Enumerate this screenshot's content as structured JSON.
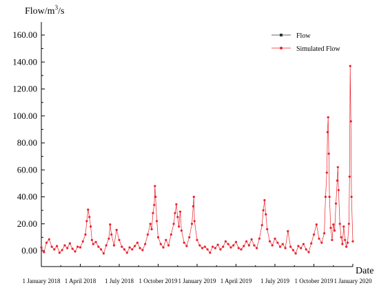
{
  "chart_data": {
    "type": "line",
    "ylabel_main": "Flow/m",
    "ylabel_sup": "3",
    "ylabel_tail": "/s",
    "xlabel": "Date",
    "ylim": [
      -5,
      170
    ],
    "yticks": [
      "0.00",
      "20.00",
      "40.00",
      "60.00",
      "80.00",
      "100.00",
      "120.00",
      "140.00",
      "160.00"
    ],
    "ytick_values": [
      0,
      20,
      40,
      60,
      80,
      100,
      120,
      140,
      160
    ],
    "xtick_labels": [
      "1 January 2018",
      "1 April 2018",
      "1 July 2018",
      "1 October 2019",
      "1 January 2019",
      "1 April 2019",
      "1 July 2019",
      "1 October 2019",
      "1 January 2020"
    ],
    "x_range": [
      0,
      24
    ],
    "grid": false,
    "legend_position": "top-right",
    "series": [
      {
        "name": "Flow",
        "color": "#333333",
        "marker": "square"
      },
      {
        "name": "Simulated Flow",
        "color": "#e8202a",
        "marker": "circle"
      }
    ],
    "points": [
      [
        0.0,
        2.5
      ],
      [
        0.2,
        -1.0
      ],
      [
        0.4,
        6.0
      ],
      [
        0.6,
        8.5
      ],
      [
        0.8,
        3.0
      ],
      [
        1.0,
        1.0
      ],
      [
        1.2,
        3.5
      ],
      [
        1.4,
        -1.5
      ],
      [
        1.6,
        0.5
      ],
      [
        1.8,
        4.0
      ],
      [
        2.0,
        2.0
      ],
      [
        2.2,
        5.5
      ],
      [
        2.4,
        1.5
      ],
      [
        2.6,
        -0.5
      ],
      [
        2.8,
        3.0
      ],
      [
        3.0,
        2.5
      ],
      [
        3.2,
        7.0
      ],
      [
        3.4,
        12.0
      ],
      [
        3.5,
        22.0
      ],
      [
        3.6,
        30.5
      ],
      [
        3.7,
        25.0
      ],
      [
        3.8,
        18.0
      ],
      [
        3.9,
        8.0
      ],
      [
        4.0,
        5.0
      ],
      [
        4.2,
        6.5
      ],
      [
        4.4,
        3.0
      ],
      [
        4.6,
        1.0
      ],
      [
        4.8,
        -2.0
      ],
      [
        5.0,
        4.0
      ],
      [
        5.2,
        9.0
      ],
      [
        5.3,
        19.5
      ],
      [
        5.4,
        12.0
      ],
      [
        5.6,
        4.0
      ],
      [
        5.8,
        15.5
      ],
      [
        6.0,
        8.0
      ],
      [
        6.2,
        3.0
      ],
      [
        6.4,
        1.0
      ],
      [
        6.6,
        -1.5
      ],
      [
        6.8,
        2.5
      ],
      [
        7.0,
        1.0
      ],
      [
        7.2,
        3.5
      ],
      [
        7.4,
        6.0
      ],
      [
        7.6,
        2.0
      ],
      [
        7.8,
        0.5
      ],
      [
        8.0,
        5.0
      ],
      [
        8.2,
        12.0
      ],
      [
        8.4,
        20.0
      ],
      [
        8.5,
        16.0
      ],
      [
        8.6,
        28.0
      ],
      [
        8.7,
        34.0
      ],
      [
        8.75,
        48.0
      ],
      [
        8.8,
        40.0
      ],
      [
        8.9,
        22.0
      ],
      [
        9.0,
        10.0
      ],
      [
        9.2,
        5.0
      ],
      [
        9.4,
        2.5
      ],
      [
        9.6,
        8.0
      ],
      [
        9.8,
        4.0
      ],
      [
        10.0,
        12.0
      ],
      [
        10.2,
        20.0
      ],
      [
        10.3,
        28.0
      ],
      [
        10.4,
        34.5
      ],
      [
        10.5,
        25.0
      ],
      [
        10.6,
        18.0
      ],
      [
        10.7,
        29.0
      ],
      [
        10.8,
        15.0
      ],
      [
        11.0,
        6.0
      ],
      [
        11.2,
        3.5
      ],
      [
        11.4,
        10.0
      ],
      [
        11.6,
        20.0
      ],
      [
        11.7,
        33.0
      ],
      [
        11.75,
        40.0
      ],
      [
        11.8,
        22.0
      ],
      [
        12.0,
        8.0
      ],
      [
        12.2,
        4.0
      ],
      [
        12.4,
        2.0
      ],
      [
        12.6,
        3.0
      ],
      [
        12.8,
        1.0
      ],
      [
        13.0,
        -1.5
      ],
      [
        13.2,
        3.0
      ],
      [
        13.4,
        2.0
      ],
      [
        13.6,
        4.5
      ],
      [
        13.8,
        1.0
      ],
      [
        14.0,
        3.0
      ],
      [
        14.2,
        7.0
      ],
      [
        14.4,
        5.0
      ],
      [
        14.6,
        2.5
      ],
      [
        14.8,
        4.0
      ],
      [
        15.0,
        6.5
      ],
      [
        15.2,
        2.0
      ],
      [
        15.4,
        1.0
      ],
      [
        15.6,
        3.5
      ],
      [
        15.8,
        7.0
      ],
      [
        16.0,
        4.0
      ],
      [
        16.2,
        8.5
      ],
      [
        16.4,
        4.0
      ],
      [
        16.6,
        2.0
      ],
      [
        16.8,
        9.0
      ],
      [
        17.0,
        19.0
      ],
      [
        17.1,
        30.0
      ],
      [
        17.2,
        37.5
      ],
      [
        17.3,
        27.0
      ],
      [
        17.4,
        16.0
      ],
      [
        17.6,
        7.0
      ],
      [
        17.8,
        4.0
      ],
      [
        18.0,
        9.0
      ],
      [
        18.2,
        6.0
      ],
      [
        18.4,
        3.0
      ],
      [
        18.6,
        5.0
      ],
      [
        18.8,
        2.0
      ],
      [
        19.0,
        14.5
      ],
      [
        19.2,
        3.0
      ],
      [
        19.4,
        0.5
      ],
      [
        19.6,
        -2.0
      ],
      [
        19.8,
        3.5
      ],
      [
        20.0,
        2.0
      ],
      [
        20.2,
        5.0
      ],
      [
        20.4,
        1.0
      ],
      [
        20.6,
        -1.0
      ],
      [
        20.8,
        5.5
      ],
      [
        21.0,
        12.0
      ],
      [
        21.2,
        19.5
      ],
      [
        21.4,
        9.0
      ],
      [
        21.6,
        6.0
      ],
      [
        21.8,
        13.0
      ],
      [
        21.9,
        40.0
      ],
      [
        22.0,
        58.0
      ],
      [
        22.05,
        88.0
      ],
      [
        22.1,
        99.0
      ],
      [
        22.15,
        72.0
      ],
      [
        22.2,
        40.0
      ],
      [
        22.3,
        17.0
      ],
      [
        22.4,
        8.0
      ],
      [
        22.5,
        19.5
      ],
      [
        22.6,
        15.0
      ],
      [
        22.7,
        35.0
      ],
      [
        22.8,
        52.0
      ],
      [
        22.85,
        62.0
      ],
      [
        22.9,
        45.0
      ],
      [
        23.0,
        20.0
      ],
      [
        23.1,
        10.0
      ],
      [
        23.2,
        5.0
      ],
      [
        23.3,
        18.0
      ],
      [
        23.4,
        8.0
      ],
      [
        23.5,
        3.0
      ],
      [
        23.6,
        6.0
      ],
      [
        23.7,
        20.0
      ],
      [
        23.75,
        55.0
      ],
      [
        23.8,
        137.0
      ],
      [
        23.85,
        96.0
      ],
      [
        23.9,
        40.0
      ],
      [
        24.0,
        7.0
      ]
    ]
  },
  "legend": {
    "flow_label": "Flow",
    "simulated_label": "Simulated Flow"
  }
}
